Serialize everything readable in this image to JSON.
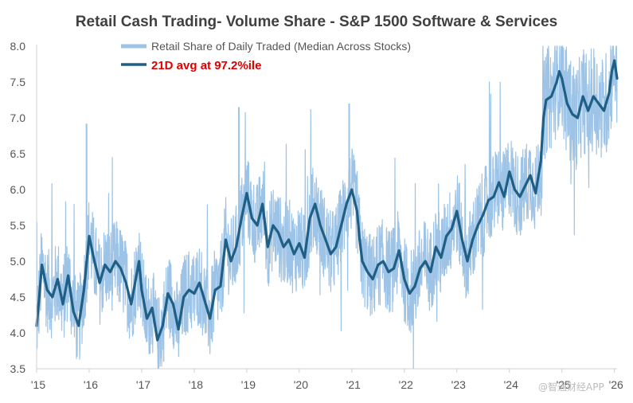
{
  "chart_data": {
    "type": "line",
    "title": "Retail Cash Trading- Volume Share - S&P 1500 Software & Services",
    "xlabel": "",
    "ylabel": "",
    "ylim": [
      3.5,
      8.0
    ],
    "yticks": [
      "8.0",
      "7.5",
      "7.0",
      "6.5",
      "6.0",
      "5.5",
      "5.0",
      "4.5",
      "4.0",
      "3.5"
    ],
    "xticks": [
      "'15",
      "'16",
      "'17",
      "'18",
      "'19",
      "'20",
      "'21",
      "'22",
      "'23",
      "'24",
      "'25",
      "'26"
    ],
    "xlim": [
      2015.0,
      2026.05
    ],
    "grid": false,
    "legend": "top-left",
    "series": [
      {
        "name": "Retail Share of Daily Traded (Median Across Stocks)",
        "color": "#9dc3e6",
        "style": "noisy-band",
        "note": "Daily values fluctuate roughly ±0.5 around the 21D average, with spikes up to ~8.0 and dips near ~3.6",
        "peaks": [
          {
            "x": 2015.95,
            "y": 6.92
          },
          {
            "x": 2018.85,
            "y": 7.15
          },
          {
            "x": 2020.95,
            "y": 7.2
          },
          {
            "x": 2025.0,
            "y": 8.0
          }
        ]
      },
      {
        "name": "21D avg at 97.2%ile",
        "color": "#1f5f85",
        "style": "line",
        "points": [
          [
            2015.0,
            4.1
          ],
          [
            2015.05,
            4.5
          ],
          [
            2015.1,
            4.95
          ],
          [
            2015.2,
            4.6
          ],
          [
            2015.3,
            4.5
          ],
          [
            2015.4,
            4.75
          ],
          [
            2015.5,
            4.4
          ],
          [
            2015.6,
            4.8
          ],
          [
            2015.7,
            4.3
          ],
          [
            2015.8,
            4.1
          ],
          [
            2015.9,
            4.6
          ],
          [
            2016.0,
            5.35
          ],
          [
            2016.1,
            5.0
          ],
          [
            2016.2,
            4.7
          ],
          [
            2016.3,
            4.95
          ],
          [
            2016.4,
            4.85
          ],
          [
            2016.5,
            5.0
          ],
          [
            2016.6,
            4.9
          ],
          [
            2016.7,
            4.7
          ],
          [
            2016.8,
            4.4
          ],
          [
            2016.9,
            4.8
          ],
          [
            2016.95,
            5.0
          ],
          [
            2017.0,
            4.6
          ],
          [
            2017.1,
            4.2
          ],
          [
            2017.2,
            4.35
          ],
          [
            2017.3,
            3.9
          ],
          [
            2017.4,
            4.1
          ],
          [
            2017.5,
            4.55
          ],
          [
            2017.6,
            4.4
          ],
          [
            2017.7,
            4.05
          ],
          [
            2017.8,
            4.5
          ],
          [
            2017.9,
            4.6
          ],
          [
            2018.0,
            4.55
          ],
          [
            2018.1,
            4.7
          ],
          [
            2018.2,
            4.45
          ],
          [
            2018.3,
            4.2
          ],
          [
            2018.4,
            4.6
          ],
          [
            2018.5,
            4.65
          ],
          [
            2018.6,
            5.3
          ],
          [
            2018.7,
            5.0
          ],
          [
            2018.8,
            5.2
          ],
          [
            2018.9,
            5.6
          ],
          [
            2019.0,
            5.95
          ],
          [
            2019.1,
            5.6
          ],
          [
            2019.2,
            5.5
          ],
          [
            2019.3,
            5.8
          ],
          [
            2019.4,
            5.2
          ],
          [
            2019.5,
            5.5
          ],
          [
            2019.6,
            5.4
          ],
          [
            2019.7,
            5.2
          ],
          [
            2019.8,
            5.3
          ],
          [
            2019.9,
            5.1
          ],
          [
            2020.0,
            5.25
          ],
          [
            2020.1,
            5.05
          ],
          [
            2020.2,
            5.6
          ],
          [
            2020.3,
            5.8
          ],
          [
            2020.4,
            5.5
          ],
          [
            2020.5,
            5.3
          ],
          [
            2020.6,
            5.1
          ],
          [
            2020.7,
            5.2
          ],
          [
            2020.8,
            5.5
          ],
          [
            2020.9,
            5.8
          ],
          [
            2021.0,
            6.0
          ],
          [
            2021.1,
            5.7
          ],
          [
            2021.15,
            5.3
          ],
          [
            2021.2,
            5.0
          ],
          [
            2021.3,
            4.85
          ],
          [
            2021.4,
            4.75
          ],
          [
            2021.5,
            4.95
          ],
          [
            2021.6,
            5.0
          ],
          [
            2021.7,
            4.85
          ],
          [
            2021.8,
            4.9
          ],
          [
            2021.9,
            5.15
          ],
          [
            2022.0,
            4.75
          ],
          [
            2022.1,
            4.55
          ],
          [
            2022.2,
            4.65
          ],
          [
            2022.3,
            4.9
          ],
          [
            2022.4,
            5.0
          ],
          [
            2022.5,
            4.85
          ],
          [
            2022.6,
            5.2
          ],
          [
            2022.7,
            5.05
          ],
          [
            2022.8,
            5.35
          ],
          [
            2022.9,
            5.45
          ],
          [
            2023.0,
            5.7
          ],
          [
            2023.1,
            5.3
          ],
          [
            2023.2,
            5.0
          ],
          [
            2023.3,
            5.3
          ],
          [
            2023.4,
            5.5
          ],
          [
            2023.5,
            5.65
          ],
          [
            2023.6,
            5.85
          ],
          [
            2023.7,
            5.9
          ],
          [
            2023.8,
            6.1
          ],
          [
            2023.9,
            5.9
          ],
          [
            2024.0,
            6.25
          ],
          [
            2024.1,
            6.0
          ],
          [
            2024.2,
            5.9
          ],
          [
            2024.3,
            6.05
          ],
          [
            2024.4,
            6.2
          ],
          [
            2024.5,
            5.95
          ],
          [
            2024.6,
            6.4
          ],
          [
            2024.65,
            7.0
          ],
          [
            2024.7,
            7.25
          ],
          [
            2024.8,
            7.3
          ],
          [
            2024.9,
            7.5
          ],
          [
            2024.95,
            7.65
          ],
          [
            2025.0,
            7.55
          ],
          [
            2025.1,
            7.2
          ],
          [
            2025.2,
            7.05
          ],
          [
            2025.3,
            7.0
          ],
          [
            2025.4,
            7.3
          ],
          [
            2025.5,
            7.1
          ],
          [
            2025.6,
            7.3
          ],
          [
            2025.7,
            7.2
          ],
          [
            2025.8,
            7.1
          ],
          [
            2025.9,
            7.35
          ],
          [
            2025.95,
            7.65
          ],
          [
            2026.0,
            7.8
          ],
          [
            2026.05,
            7.55
          ]
        ]
      }
    ]
  },
  "watermark": "@智通财经APP"
}
